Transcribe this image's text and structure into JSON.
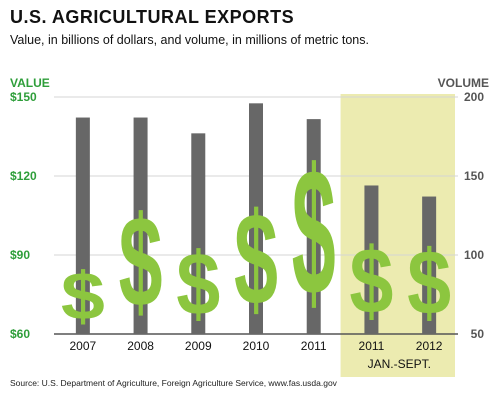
{
  "header": {
    "title": "U.S. AGRICULTURAL EXPORTS",
    "subtitle": "Value, in billions of dollars, and volume, in millions of metric tons."
  },
  "footer": {
    "source": "Source: U.S. Department of Agriculture, Foreign Agriculture Service, www.fas.usda.gov"
  },
  "colors": {
    "value": "#8cc63f",
    "volume": "#676767",
    "highlight": "#ecebb0",
    "left_axis": "#2e9e3a",
    "right_axis": "#555555"
  },
  "chart_data": {
    "type": "bar",
    "title": "U.S. AGRICULTURAL EXPORTS",
    "subtitle": "Value, in billions of dollars, and volume, in millions of metric tons.",
    "categories": [
      "2007",
      "2008",
      "2009",
      "2010",
      "2011",
      "2011",
      "2012"
    ],
    "series": [
      {
        "name": "VALUE",
        "axis": "left",
        "marker": "$",
        "values": [
          89,
          115,
          98,
          116,
          137,
          100,
          99
        ]
      },
      {
        "name": "VOLUME",
        "axis": "right",
        "values": [
          187,
          187,
          177,
          196,
          186,
          144,
          137
        ]
      }
    ],
    "left_axis": {
      "label": "VALUE",
      "ylim": [
        60,
        150
      ],
      "ticks": [
        "$60",
        "$90",
        "$120",
        "$150"
      ]
    },
    "right_axis": {
      "label": "VOLUME",
      "ylim": [
        50,
        200
      ],
      "ticks": [
        "50",
        "100",
        "150",
        "200"
      ]
    },
    "highlight": {
      "categories": [
        "2011",
        "2012"
      ],
      "label": "JAN.-SEPT."
    },
    "grid": true,
    "legend": "none"
  }
}
